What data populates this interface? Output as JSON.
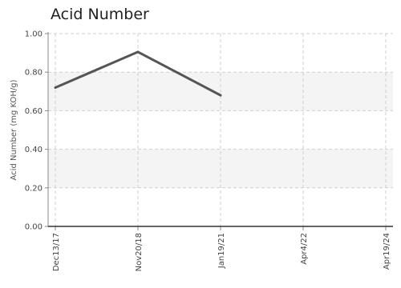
{
  "chart_data": {
    "type": "line",
    "title": "Acid Number",
    "xlabel": "",
    "ylabel": "Acid Number (mg KOH/g)",
    "categories": [
      "Dec13/17",
      "Nov20/18",
      "Jan19/21",
      "Apr4/22",
      "Apr19/24"
    ],
    "series": [
      {
        "values": [
          0.72,
          0.905,
          0.68,
          null,
          null
        ]
      }
    ],
    "ylim": [
      0,
      1
    ],
    "yticks": [
      "0.00",
      "0.20",
      "0.40",
      "0.60",
      "0.80",
      "1.00"
    ],
    "grid": true,
    "bands": [
      [
        0.2,
        0.4
      ],
      [
        0.6,
        0.8
      ]
    ],
    "colors": {
      "line": "#555555",
      "band": "#f4f4f4",
      "grid": "#cfcfcf"
    }
  }
}
